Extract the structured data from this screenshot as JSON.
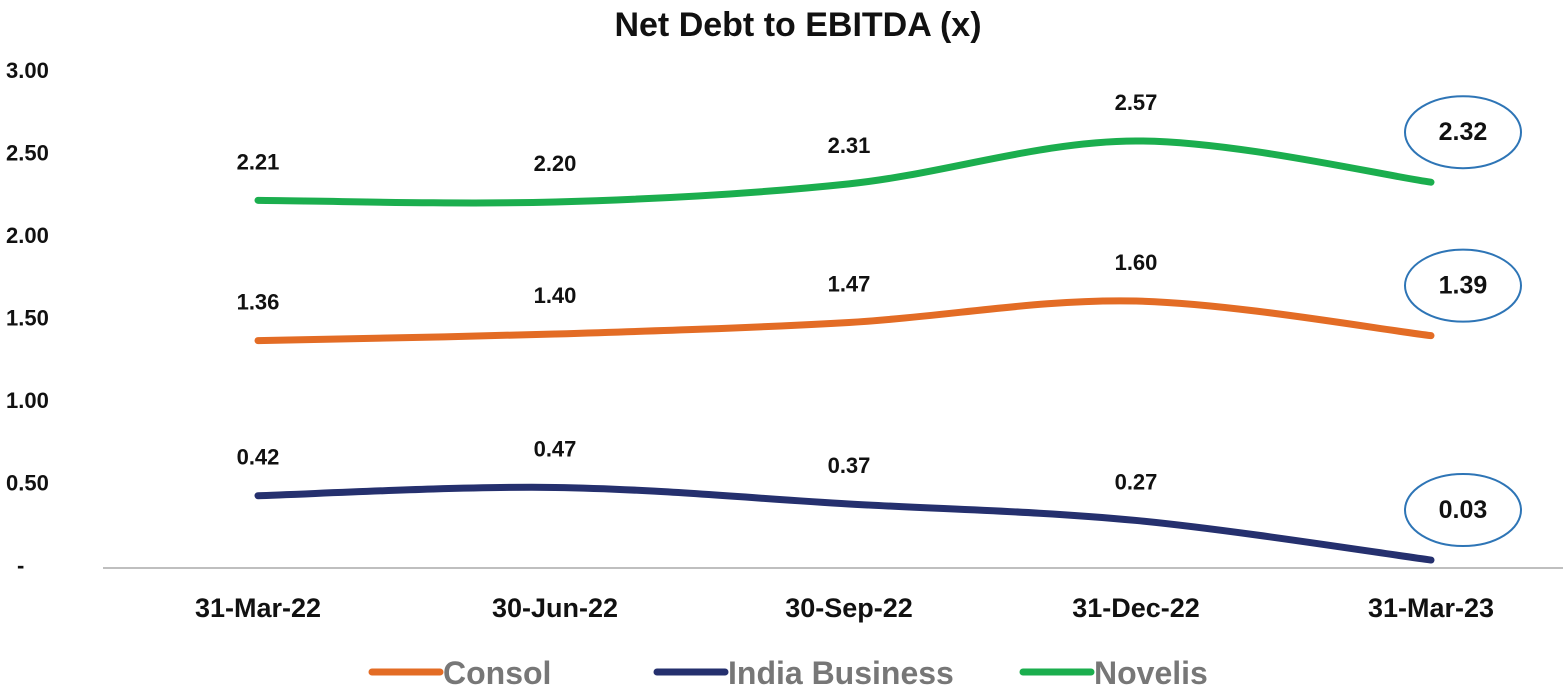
{
  "chart_data": {
    "type": "line",
    "title": "Net Debt to EBITDA (x)",
    "categories": [
      "31-Mar-22",
      "30-Jun-22",
      "30-Sep-22",
      "31-Dec-22",
      "31-Mar-23"
    ],
    "ylim": [
      0,
      3
    ],
    "yticks": [
      0,
      0.5,
      1.0,
      1.5,
      2.0,
      2.5,
      3.0
    ],
    "ytick_labels": [
      "-",
      "0.50",
      "1.00",
      "1.50",
      "2.00",
      "2.50",
      "3.00"
    ],
    "grid": false,
    "legend_position": "bottom",
    "series": [
      {
        "name": "Consol",
        "color": "#E36C25",
        "values": [
          1.36,
          1.4,
          1.47,
          1.6,
          1.39
        ],
        "labels": [
          "1.36",
          "1.40",
          "1.47",
          "1.60",
          "1.39"
        ]
      },
      {
        "name": "India Business",
        "color": "#25306E",
        "values": [
          0.42,
          0.47,
          0.37,
          0.27,
          0.03
        ],
        "labels": [
          "0.42",
          "0.47",
          "0.37",
          "0.27",
          "0.03"
        ]
      },
      {
        "name": "Novelis",
        "color": "#1BAE4E",
        "values": [
          2.21,
          2.2,
          2.31,
          2.57,
          2.32
        ],
        "labels": [
          "2.21",
          "2.20",
          "2.31",
          "2.57",
          "2.32"
        ]
      }
    ],
    "highlight": {
      "category": "31-Mar-23",
      "shape": "ellipse",
      "color": "#2E75B6"
    }
  }
}
